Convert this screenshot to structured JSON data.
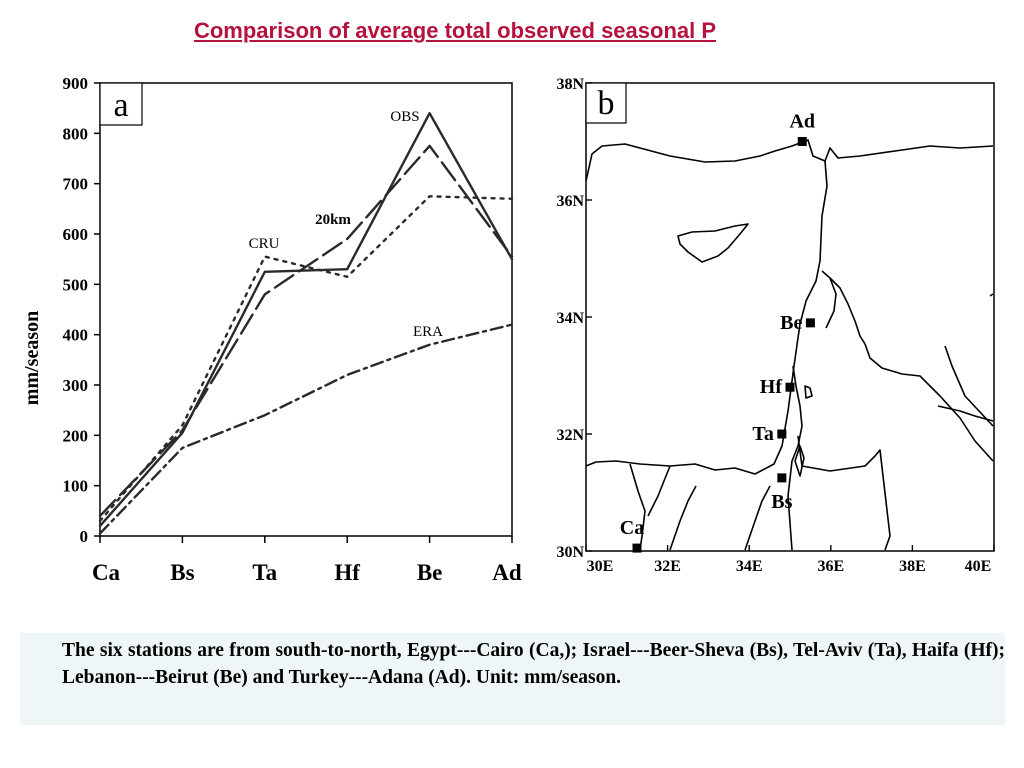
{
  "slide_title": "Comparison of average total observed seasonal P",
  "chart_data": {
    "type": "line",
    "panel_label": "a",
    "ylabel": "mm/season",
    "ylim": [
      0,
      900
    ],
    "yticks": [
      0,
      100,
      200,
      300,
      400,
      500,
      600,
      700,
      800,
      900
    ],
    "categories": [
      "Ca",
      "Bs",
      "Ta",
      "Hf",
      "Be",
      "Ad"
    ],
    "series": [
      {
        "name": "OBS",
        "style": "solid",
        "values": [
          20,
          205,
          525,
          530,
          840,
          550
        ]
      },
      {
        "name": "20km",
        "style": "long-dash",
        "values": [
          40,
          210,
          480,
          590,
          775,
          555
        ]
      },
      {
        "name": "CRU",
        "style": "dotted",
        "values": [
          30,
          220,
          555,
          515,
          675,
          670
        ]
      },
      {
        "name": "ERA",
        "style": "dash-dot",
        "values": [
          5,
          175,
          240,
          320,
          380,
          420
        ]
      }
    ],
    "grid": false
  },
  "map": {
    "panel_label": "b",
    "lat_labels": [
      "38N",
      "36N",
      "34N",
      "32N",
      "30N"
    ],
    "lon_labels": [
      "30E",
      "32E",
      "34E",
      "36E",
      "38E",
      "40E"
    ],
    "stations": [
      {
        "code": "Ad",
        "lat": 37.0,
        "lon": 35.3
      },
      {
        "code": "Be",
        "lat": 33.9,
        "lon": 35.5
      },
      {
        "code": "Hf",
        "lat": 32.8,
        "lon": 35.0
      },
      {
        "code": "Ta",
        "lat": 32.0,
        "lon": 34.8
      },
      {
        "code": "Bs",
        "lat": 31.25,
        "lon": 34.8
      },
      {
        "code": "Ca",
        "lat": 30.05,
        "lon": 31.25
      }
    ]
  },
  "caption": "The six stations are from south-to-north, Egypt---Cairo (Ca,); Israel---Beer-Sheva (Bs), Tel-Aviv (Ta), Haifa (Hf); Lebanon---Beirut (Be) and Turkey---Adana (Ad). Unit: mm/season."
}
